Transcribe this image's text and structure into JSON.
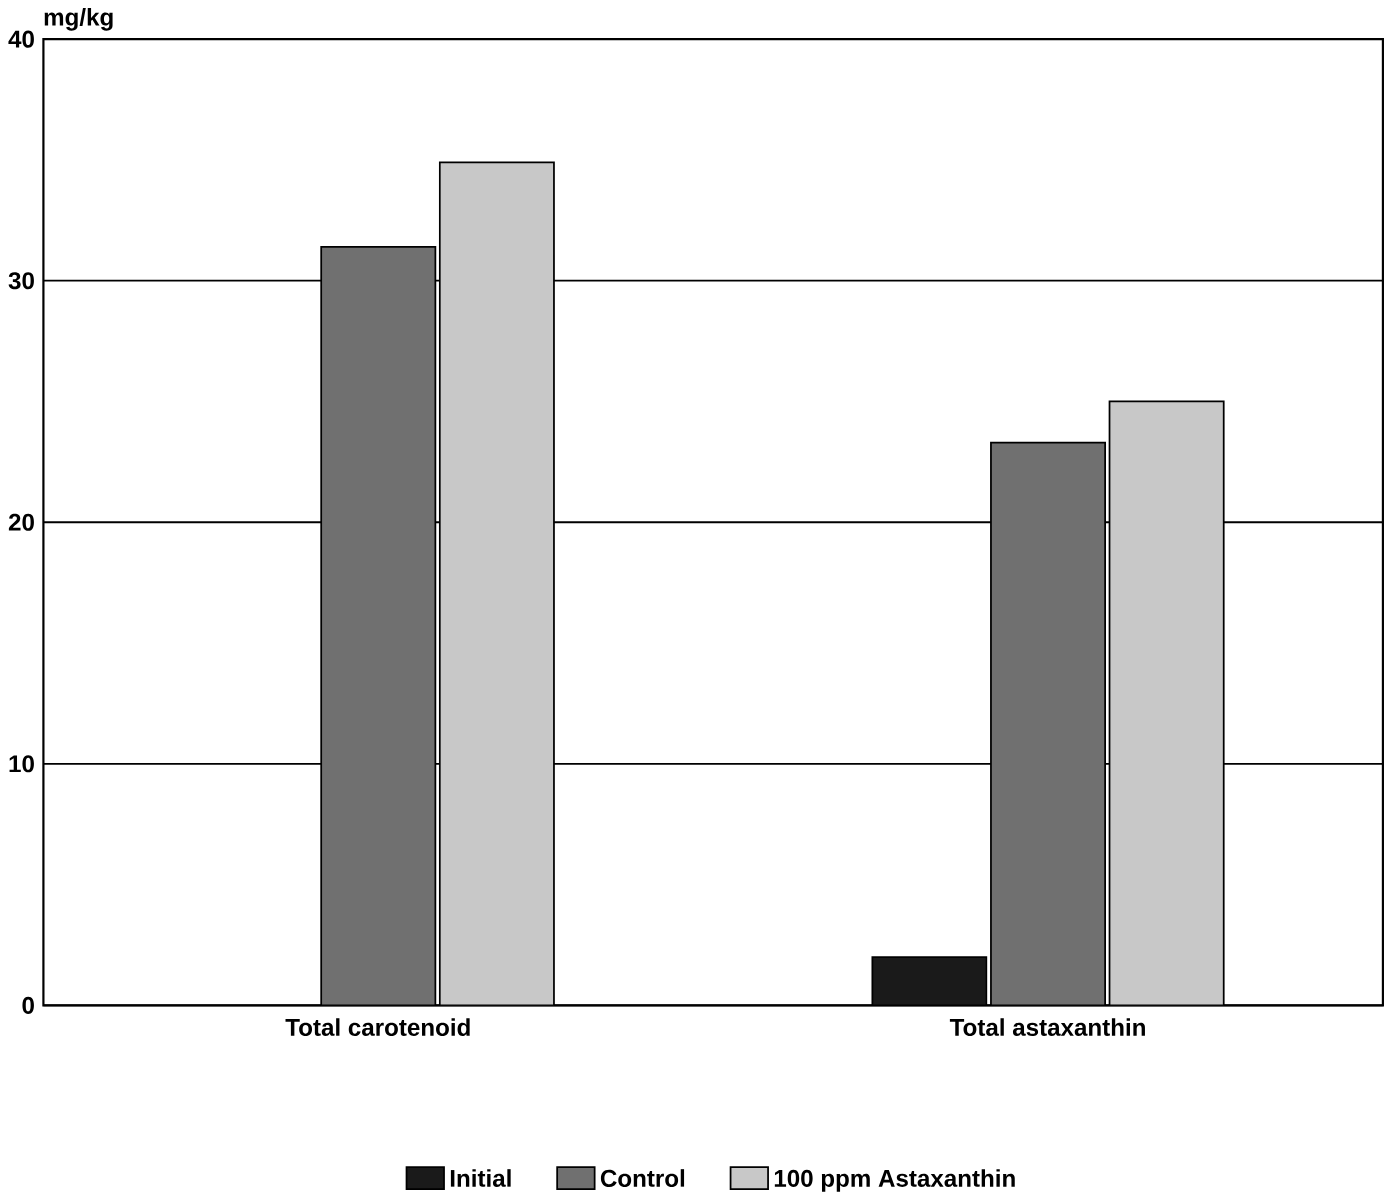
{
  "chart_data": {
    "type": "bar",
    "ylabel": "mg/kg",
    "categories": [
      "Total carotenoid",
      "Total astaxanthin"
    ],
    "series": [
      {
        "name": "Initial",
        "color": "#1a1a1a",
        "values": [
          null,
          2.0
        ]
      },
      {
        "name": "Control",
        "color": "#707070",
        "values": [
          31.4,
          23.3
        ]
      },
      {
        "name": "100 ppm Astaxanthin",
        "color": "#c8c8c8",
        "values": [
          34.9,
          25.0
        ]
      }
    ],
    "ylim": [
      0,
      40
    ],
    "yticks": [
      0,
      10,
      20,
      30,
      40
    ],
    "grid": "y",
    "legend": "bottom"
  }
}
